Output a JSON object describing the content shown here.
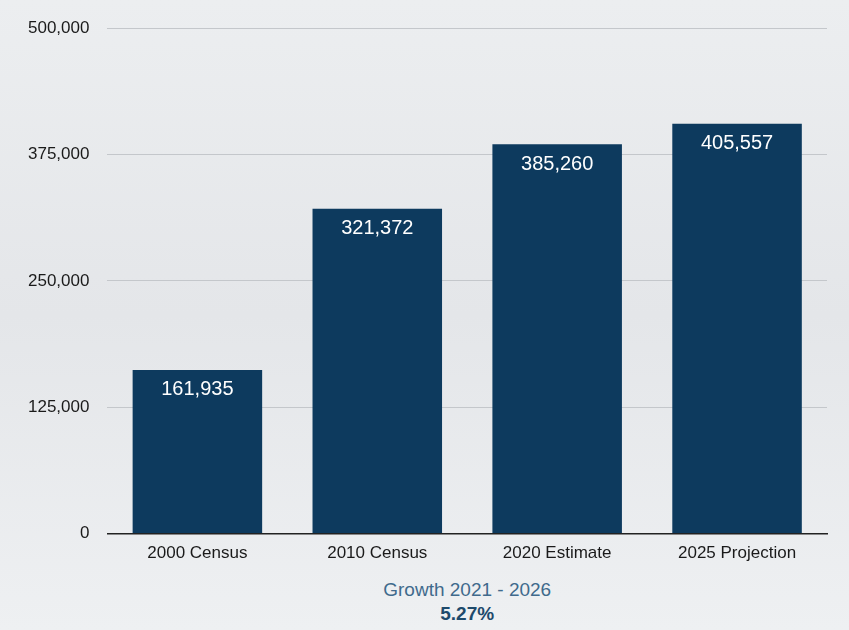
{
  "chart_data": {
    "type": "bar",
    "categories": [
      "2000 Census",
      "2010 Census",
      "2020 Estimate",
      "2025 Projection"
    ],
    "values": [
      161935,
      321372,
      385260,
      405557
    ],
    "value_labels": [
      "161,935",
      "321,372",
      "385,260",
      "405,557"
    ],
    "data_labels": true,
    "color": "#0d3a5e",
    "ylim": [
      0,
      500000
    ],
    "yticks": [
      0,
      {
        "value": 125000,
        "label": "125,000"
      },
      {
        "value": 250000,
        "label": "250,000"
      },
      {
        "value": 375000,
        "label": "375,000"
      },
      {
        "value": 500000,
        "label": "500,000"
      }
    ],
    "grid": true,
    "annotations": [
      "Growth 2021 - 2026",
      "5.27%"
    ]
  }
}
